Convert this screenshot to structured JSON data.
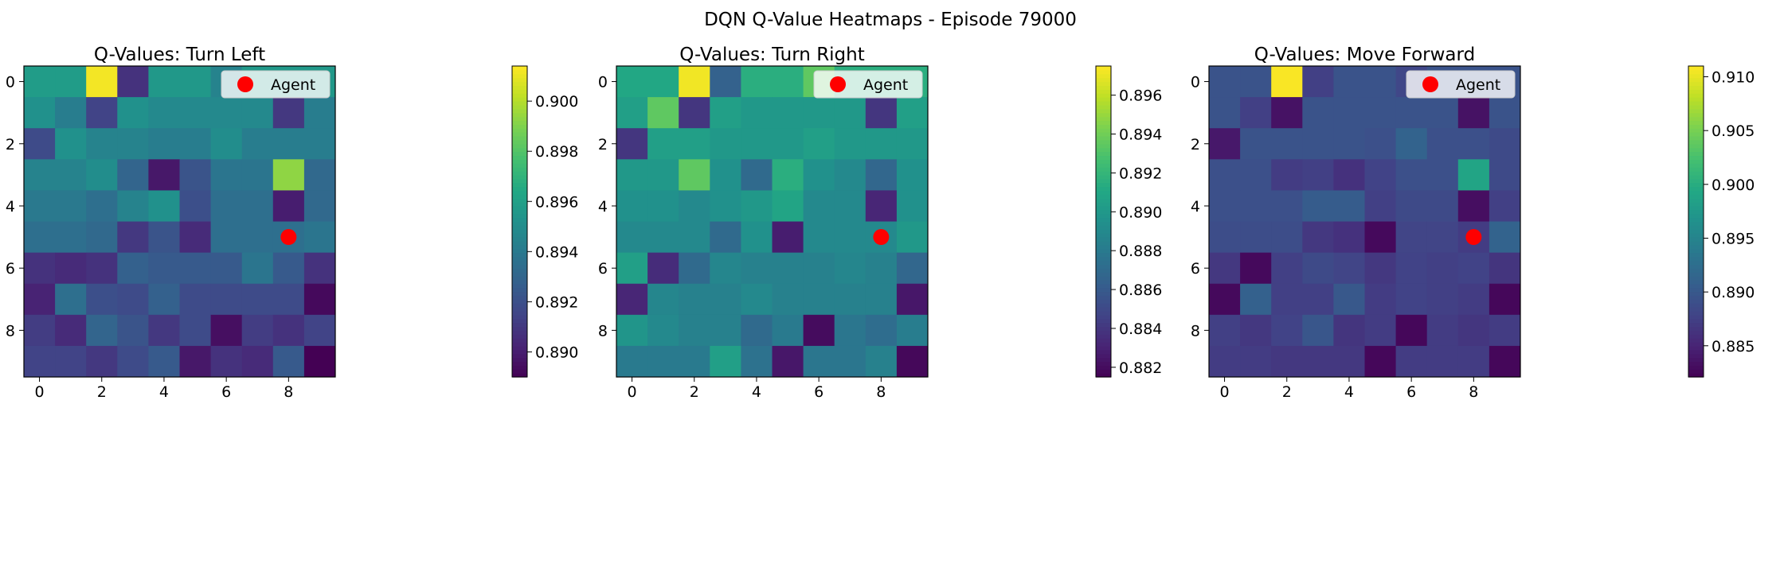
{
  "figure_title": "DQN Q-Value Heatmaps - Episode 79000",
  "chart_data": [
    {
      "type": "heatmap",
      "title": "Q-Values: Turn Left",
      "xlabel": "",
      "ylabel": "",
      "x_ticks": [
        0,
        2,
        4,
        6,
        8
      ],
      "y_ticks": [
        0,
        2,
        4,
        6,
        8
      ],
      "colormap": "viridis",
      "colorbar_range": [
        0.889,
        0.9014
      ],
      "colorbar_ticks": [
        "0.890",
        "0.892",
        "0.894",
        "0.896",
        "0.898",
        "0.900"
      ],
      "agent": {
        "x": 8,
        "y": 5,
        "color": "#ff0000"
      },
      "legend": {
        "label": "Agent",
        "placement": "upper-right"
      },
      "values": [
        [
          0.8958,
          0.8958,
          0.9012,
          0.8908,
          0.8956,
          0.8956,
          0.8945,
          0.8956,
          0.8956,
          0.8956
        ],
        [
          0.8952,
          0.8942,
          0.8915,
          0.8952,
          0.8948,
          0.8948,
          0.8948,
          0.8948,
          0.891,
          0.8942
        ],
        [
          0.8918,
          0.8952,
          0.8945,
          0.8945,
          0.8942,
          0.8942,
          0.895,
          0.8942,
          0.8942,
          0.8942
        ],
        [
          0.8945,
          0.8945,
          0.895,
          0.893,
          0.8898,
          0.8922,
          0.8938,
          0.8938,
          0.8993,
          0.8932
        ],
        [
          0.894,
          0.894,
          0.8935,
          0.8945,
          0.8952,
          0.892,
          0.8935,
          0.8935,
          0.89,
          0.8932
        ],
        [
          0.8935,
          0.8935,
          0.8932,
          0.891,
          0.8922,
          0.8905,
          0.8935,
          0.8935,
          0.8935,
          0.8938
        ],
        [
          0.8908,
          0.8905,
          0.8908,
          0.8928,
          0.8925,
          0.8925,
          0.8925,
          0.8938,
          0.8925,
          0.8908
        ],
        [
          0.8902,
          0.8935,
          0.892,
          0.8918,
          0.8928,
          0.8918,
          0.8918,
          0.8918,
          0.8918,
          0.8893
        ],
        [
          0.8912,
          0.8905,
          0.893,
          0.8922,
          0.891,
          0.8918,
          0.8895,
          0.8912,
          0.8908,
          0.8915
        ],
        [
          0.8915,
          0.8915,
          0.891,
          0.8918,
          0.8925,
          0.8898,
          0.8908,
          0.8905,
          0.8925,
          0.889
        ]
      ]
    },
    {
      "type": "heatmap",
      "title": "Q-Values: Turn Right",
      "xlabel": "",
      "ylabel": "",
      "x_ticks": [
        0,
        2,
        4,
        6,
        8
      ],
      "y_ticks": [
        0,
        2,
        4,
        6,
        8
      ],
      "colormap": "viridis",
      "colorbar_range": [
        0.8815,
        0.8975
      ],
      "colorbar_ticks": [
        "0.882",
        "0.884",
        "0.886",
        "0.888",
        "0.890",
        "0.892",
        "0.894",
        "0.896"
      ],
      "agent": {
        "x": 8,
        "y": 5,
        "color": "#ff0000"
      },
      "legend": {
        "label": "Agent",
        "placement": "upper-right"
      },
      "values": [
        [
          0.891,
          0.891,
          0.8972,
          0.8865,
          0.8915,
          0.8915,
          0.8935,
          0.8915,
          0.8915,
          0.8915
        ],
        [
          0.8905,
          0.8935,
          0.884,
          0.8905,
          0.89,
          0.89,
          0.89,
          0.89,
          0.884,
          0.8905
        ],
        [
          0.884,
          0.8905,
          0.8905,
          0.89,
          0.89,
          0.89,
          0.8905,
          0.89,
          0.89,
          0.89
        ],
        [
          0.89,
          0.89,
          0.8935,
          0.8895,
          0.887,
          0.8915,
          0.8895,
          0.889,
          0.8868,
          0.8895
        ],
        [
          0.8895,
          0.8895,
          0.889,
          0.8895,
          0.89,
          0.8908,
          0.889,
          0.889,
          0.8832,
          0.8895
        ],
        [
          0.889,
          0.889,
          0.889,
          0.887,
          0.8895,
          0.8828,
          0.889,
          0.889,
          0.889,
          0.89
        ],
        [
          0.8905,
          0.8835,
          0.887,
          0.8888,
          0.8885,
          0.8885,
          0.8885,
          0.8888,
          0.8885,
          0.8868
        ],
        [
          0.8832,
          0.8888,
          0.8885,
          0.8885,
          0.889,
          0.8885,
          0.8885,
          0.8885,
          0.8885,
          0.8825
        ],
        [
          0.8898,
          0.889,
          0.8885,
          0.8885,
          0.887,
          0.888,
          0.882,
          0.8878,
          0.8872,
          0.8882
        ],
        [
          0.888,
          0.888,
          0.888,
          0.8905,
          0.8875,
          0.8825,
          0.8878,
          0.8878,
          0.8885,
          0.8818
        ]
      ]
    },
    {
      "type": "heatmap",
      "title": "Q-Values: Move Forward",
      "xlabel": "",
      "ylabel": "",
      "x_ticks": [
        0,
        2,
        4,
        6,
        8
      ],
      "y_ticks": [
        0,
        2,
        4,
        6,
        8
      ],
      "colormap": "viridis",
      "colorbar_range": [
        0.8821,
        0.911
      ],
      "colorbar_ticks": [
        "0.885",
        "0.890",
        "0.895",
        "0.900",
        "0.905",
        "0.910"
      ],
      "agent": {
        "x": 8,
        "y": 5,
        "color": "#ff0000"
      },
      "legend": {
        "label": "Agent",
        "placement": "upper-right"
      },
      "values": [
        [
          0.8895,
          0.8895,
          0.9108,
          0.8875,
          0.8895,
          0.8895,
          0.8882,
          0.8895,
          0.8895,
          0.8895
        ],
        [
          0.8895,
          0.8875,
          0.8835,
          0.8895,
          0.8895,
          0.8895,
          0.8895,
          0.8895,
          0.8835,
          0.8895
        ],
        [
          0.884,
          0.8895,
          0.8895,
          0.8895,
          0.8895,
          0.8892,
          0.8912,
          0.8892,
          0.8892,
          0.8885
        ],
        [
          0.8892,
          0.8892,
          0.8872,
          0.8875,
          0.8862,
          0.8878,
          0.8892,
          0.8892,
          0.899,
          0.8885
        ],
        [
          0.8892,
          0.8892,
          0.8892,
          0.8905,
          0.8905,
          0.8875,
          0.8885,
          0.8885,
          0.8832,
          0.8875
        ],
        [
          0.8888,
          0.8888,
          0.8888,
          0.8868,
          0.8862,
          0.8828,
          0.888,
          0.888,
          0.8872,
          0.8912
        ],
        [
          0.8868,
          0.8828,
          0.8875,
          0.8885,
          0.888,
          0.8868,
          0.8878,
          0.8875,
          0.8878,
          0.8865
        ],
        [
          0.8828,
          0.891,
          0.8875,
          0.8875,
          0.89,
          0.8872,
          0.8878,
          0.8875,
          0.8872,
          0.8826
        ],
        [
          0.8875,
          0.8868,
          0.8878,
          0.8898,
          0.8865,
          0.8872,
          0.8826,
          0.8872,
          0.8866,
          0.8872
        ],
        [
          0.8872,
          0.8872,
          0.8868,
          0.8868,
          0.8868,
          0.8826,
          0.8872,
          0.8872,
          0.8872,
          0.8826
        ]
      ]
    }
  ]
}
